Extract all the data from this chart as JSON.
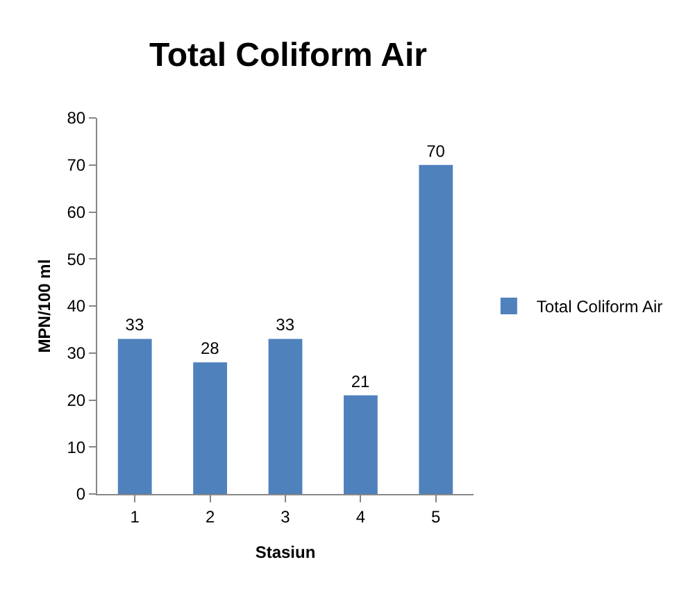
{
  "chart_data": {
    "type": "bar",
    "title": "Total Coliform Air",
    "xlabel": "Stasiun",
    "ylabel": "MPN/100 ml",
    "categories": [
      "1",
      "2",
      "3",
      "4",
      "5"
    ],
    "series": [
      {
        "name": "Total Coliform Air",
        "color": "#4f81bd",
        "values": [
          33,
          28,
          33,
          21,
          70
        ]
      }
    ],
    "ylim": [
      0,
      80
    ],
    "yticks": [
      0,
      10,
      20,
      30,
      40,
      50,
      60,
      70,
      80
    ],
    "grid": false,
    "legend": "right",
    "data_labels": true
  }
}
